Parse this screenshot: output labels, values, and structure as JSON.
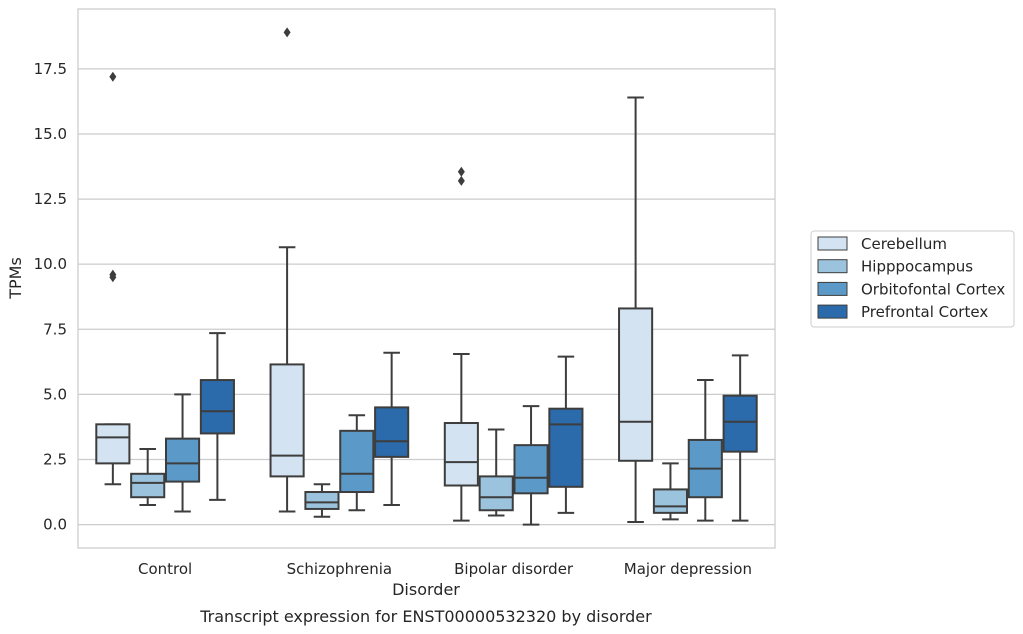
{
  "caption": "Transcript expression for ENST00000532320 by disorder",
  "chart_data": {
    "type": "box",
    "xlabel": "Disorder",
    "ylabel": "TPMs",
    "ylim": [
      -0.9,
      19.8
    ],
    "yticks": [
      "0.0",
      "2.5",
      "5.0",
      "7.5",
      "10.0",
      "12.5",
      "15.0",
      "17.5"
    ],
    "ytick_values": [
      0,
      2.5,
      5,
      7.5,
      10,
      12.5,
      15,
      17.5
    ],
    "grid": "horizontal",
    "legend_position": "right",
    "categories": [
      "Control",
      "Schizophrenia",
      "Bipolar disorder",
      "Major depression"
    ],
    "series": [
      {
        "name": "Cerebellum",
        "color": "#d4e3f2",
        "boxes": [
          {
            "whislo": 1.55,
            "q1": 2.35,
            "med": 3.35,
            "q3": 3.85,
            "whishi": 3.85,
            "fliers": [
              17.2,
              9.6,
              9.5
            ]
          },
          {
            "whislo": 0.5,
            "q1": 1.85,
            "med": 2.65,
            "q3": 6.15,
            "whishi": 10.65,
            "fliers": [
              18.9
            ]
          },
          {
            "whislo": 0.15,
            "q1": 1.5,
            "med": 2.4,
            "q3": 3.9,
            "whishi": 6.55,
            "fliers": [
              13.55,
              13.2
            ]
          },
          {
            "whislo": 0.1,
            "q1": 2.45,
            "med": 3.95,
            "q3": 8.3,
            "whishi": 16.4,
            "fliers": []
          }
        ]
      },
      {
        "name": "Hipppocampus",
        "color": "#9bc3dd",
        "boxes": [
          {
            "whislo": 0.75,
            "q1": 1.05,
            "med": 1.6,
            "q3": 1.95,
            "whishi": 2.9,
            "fliers": []
          },
          {
            "whislo": 0.3,
            "q1": 0.6,
            "med": 0.85,
            "q3": 1.25,
            "whishi": 1.55,
            "fliers": []
          },
          {
            "whislo": 0.35,
            "q1": 0.55,
            "med": 1.05,
            "q3": 1.85,
            "whishi": 3.65,
            "fliers": []
          },
          {
            "whislo": 0.2,
            "q1": 0.45,
            "med": 0.7,
            "q3": 1.35,
            "whishi": 2.35,
            "fliers": []
          }
        ]
      },
      {
        "name": "Orbitofontal Cortex",
        "color": "#5b9ac8",
        "boxes": [
          {
            "whislo": 0.5,
            "q1": 1.65,
            "med": 2.35,
            "q3": 3.3,
            "whishi": 5.0,
            "fliers": []
          },
          {
            "whislo": 0.55,
            "q1": 1.25,
            "med": 1.95,
            "q3": 3.6,
            "whishi": 4.2,
            "fliers": []
          },
          {
            "whislo": 0.0,
            "q1": 1.2,
            "med": 1.8,
            "q3": 3.05,
            "whishi": 4.55,
            "fliers": []
          },
          {
            "whislo": 0.15,
            "q1": 1.05,
            "med": 2.15,
            "q3": 3.25,
            "whishi": 5.55,
            "fliers": []
          }
        ]
      },
      {
        "name": "Prefrontal Cortex",
        "color": "#2b6aab",
        "boxes": [
          {
            "whislo": 0.95,
            "q1": 3.5,
            "med": 4.35,
            "q3": 5.55,
            "whishi": 7.35,
            "fliers": []
          },
          {
            "whislo": 0.75,
            "q1": 2.6,
            "med": 3.2,
            "q3": 4.5,
            "whishi": 6.6,
            "fliers": []
          },
          {
            "whislo": 0.45,
            "q1": 1.45,
            "med": 3.85,
            "q3": 4.45,
            "whishi": 6.45,
            "fliers": []
          },
          {
            "whislo": 0.15,
            "q1": 2.8,
            "med": 3.95,
            "q3": 4.95,
            "whishi": 6.5,
            "fliers": []
          }
        ]
      }
    ]
  }
}
